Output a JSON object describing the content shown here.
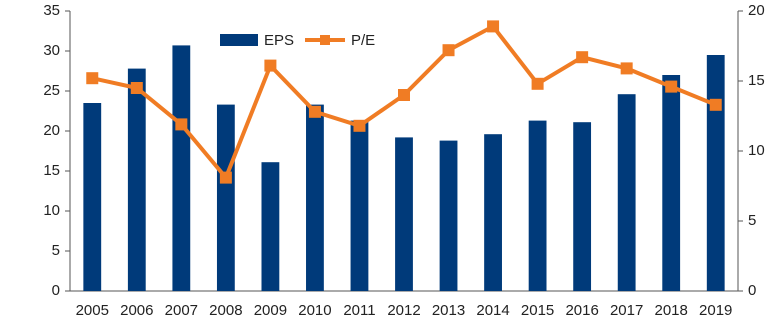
{
  "chart_data": {
    "type": "bar",
    "categories": [
      "2005",
      "2006",
      "2007",
      "2008",
      "2009",
      "2010",
      "2011",
      "2012",
      "2013",
      "2014",
      "2015",
      "2016",
      "2017",
      "2018",
      "2019"
    ],
    "series": [
      {
        "name": "EPS",
        "color": "#003a7a",
        "type": "bar",
        "values": [
          23.5,
          27.8,
          30.7,
          23.3,
          16.1,
          23.3,
          21.3,
          19.2,
          18.8,
          19.6,
          21.3,
          21.1,
          24.6,
          27.0,
          29.5
        ]
      },
      {
        "name": "P/E",
        "color": "#f07c24",
        "type": "line",
        "axis": "y2",
        "values": [
          15.2,
          14.5,
          11.9,
          8.1,
          16.1,
          12.8,
          11.8,
          14.0,
          17.2,
          18.9,
          14.8,
          16.7,
          15.9,
          14.6,
          13.3
        ]
      }
    ],
    "ylim": [
      0,
      35
    ],
    "yticks": [
      0,
      5,
      10,
      15,
      20,
      25,
      30,
      35
    ],
    "y2lim": [
      0,
      20
    ],
    "y2ticks": [
      0,
      5,
      10,
      15,
      20
    ],
    "legend": "top-left"
  }
}
